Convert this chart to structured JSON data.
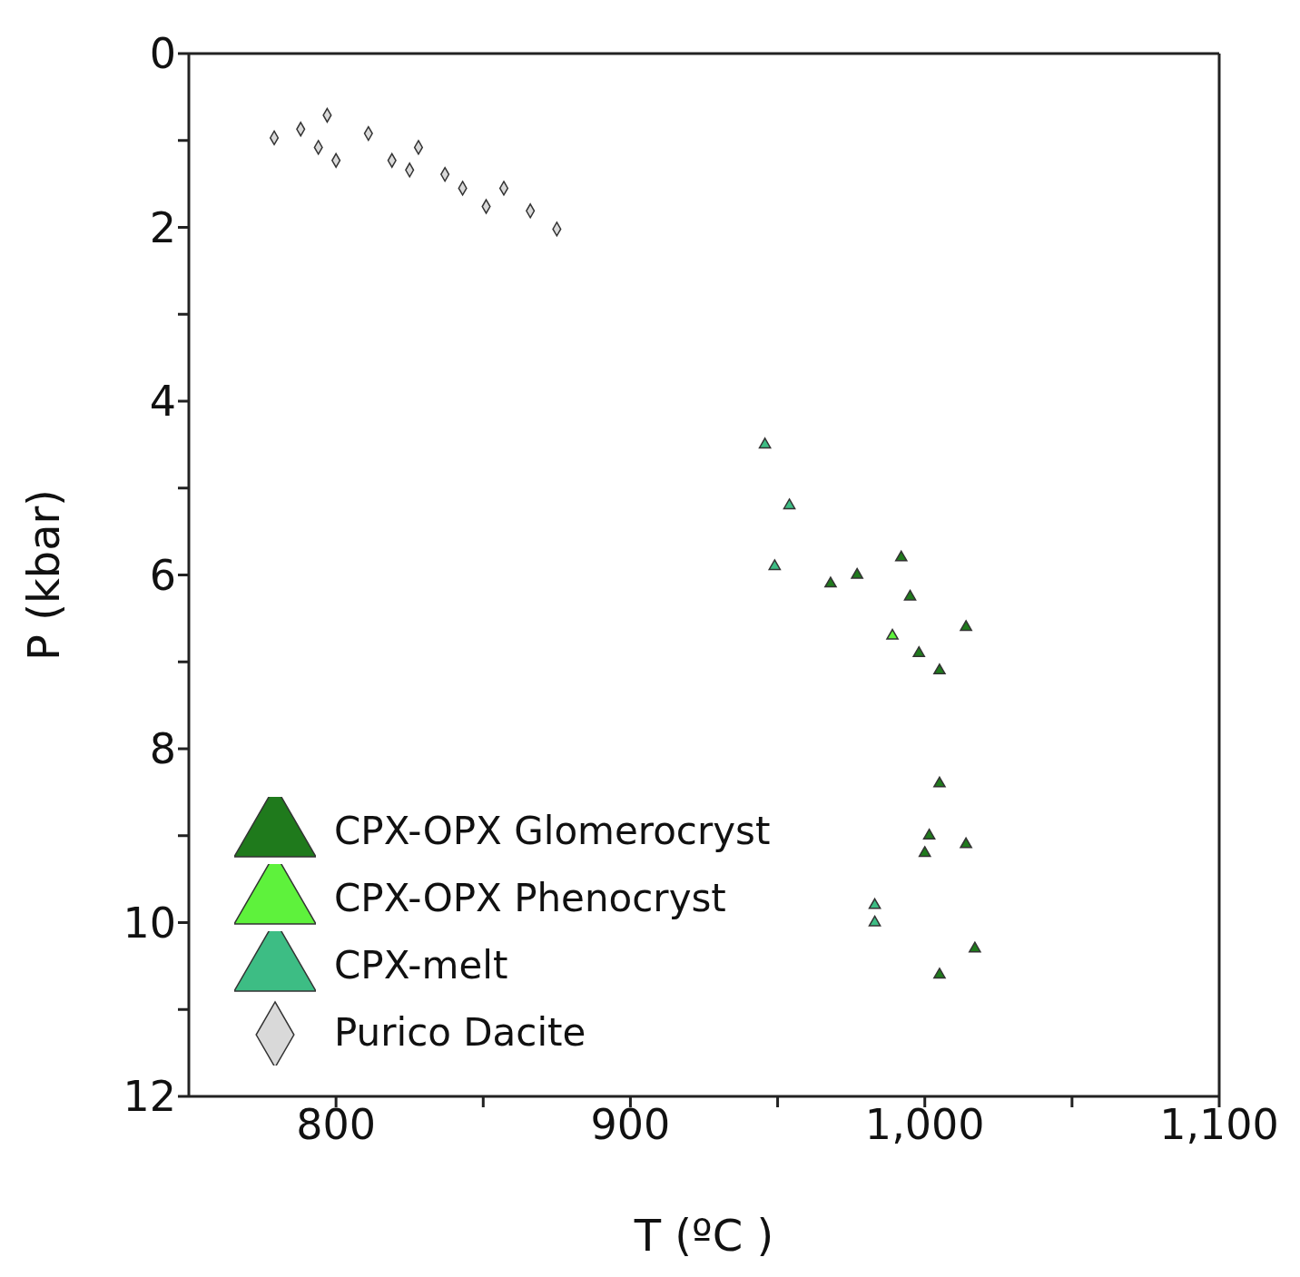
{
  "chart_data": {
    "type": "scatter",
    "xlabel": "T (ºC )",
    "ylabel": "P (kbar)",
    "xlim": [
      750,
      1100
    ],
    "xticks": [
      800,
      {
        "value": 850,
        "label": null
      },
      900,
      {
        "value": 950,
        "label": null
      },
      {
        "value": 1000,
        "label": "1,000"
      },
      {
        "value": 1050,
        "label": null
      },
      {
        "value": 1100,
        "label": "1,100"
      }
    ],
    "ylim": [
      12,
      0
    ],
    "yticks": [
      0,
      {
        "value": 1,
        "label": null
      },
      2,
      {
        "value": 3,
        "label": null
      },
      4,
      {
        "value": 5,
        "label": null
      },
      6,
      {
        "value": 7,
        "label": null
      },
      8,
      {
        "value": 9,
        "label": null
      },
      10,
      {
        "value": 11,
        "label": null
      },
      12
    ],
    "grid": false,
    "legend": "bottom left",
    "series": [
      {
        "name": "CPX-OPX Glomerocryst",
        "color": "#1f7a1c",
        "marker": "triangle",
        "x": [
          968,
          977,
          992,
          995,
          1014,
          998,
          1005,
          1005,
          1001.5,
          1014,
          1000,
          1017,
          1005
        ],
        "values": [
          6.1,
          6.0,
          5.8,
          6.25,
          6.6,
          6.9,
          7.1,
          8.4,
          9.0,
          9.1,
          9.2,
          10.3,
          10.6
        ]
      },
      {
        "name": "CPX-OPX Phenocryst",
        "color": "#5ef23c",
        "marker": "triangle",
        "x": [
          989
        ],
        "values": [
          6.7
        ]
      },
      {
        "name": "CPX-melt",
        "color": "#3dbd84",
        "marker": "triangle",
        "x": [
          945.7,
          954,
          949,
          983,
          983
        ],
        "values": [
          4.5,
          5.2,
          5.9,
          9.8,
          10.0
        ]
      },
      {
        "name": "Purico Dacite",
        "color": "#d9d9d9",
        "marker": "diamond",
        "x": [
          779,
          788,
          797,
          794,
          811,
          800,
          819,
          828,
          825,
          837,
          843,
          851,
          857,
          866,
          875
        ],
        "values": [
          0.97,
          0.87,
          0.71,
          1.08,
          0.92,
          1.23,
          1.23,
          1.08,
          1.34,
          1.39,
          1.55,
          1.76,
          1.55,
          1.81,
          2.02
        ]
      }
    ]
  }
}
